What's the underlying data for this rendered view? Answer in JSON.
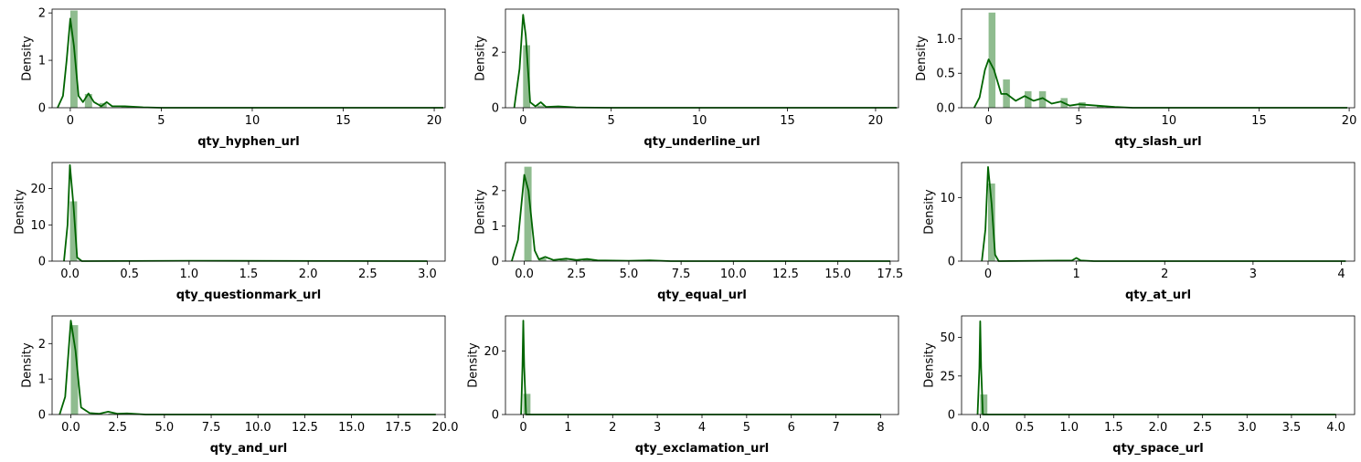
{
  "colors": {
    "bar": "#8fbc8f",
    "kde": "#006400",
    "axis": "#000000"
  },
  "chart_data": [
    {
      "type": "bar",
      "xlabel": "qty_hyphen_url",
      "ylabel": "Density",
      "xlim": [
        -1.0,
        20.6
      ],
      "ylim": [
        0,
        2.08
      ],
      "xticks": [
        0,
        5,
        10,
        15,
        20
      ],
      "xtick_labels": [
        "0",
        "5",
        "10",
        "15",
        "20"
      ],
      "yticks": [
        0,
        1,
        2
      ],
      "ytick_labels": [
        "0",
        "1",
        "2"
      ],
      "bin_width": 0.4,
      "bars": [
        [
          0.0,
          2.05
        ],
        [
          0.8,
          0.29
        ],
        [
          1.6,
          0.1
        ],
        [
          2.8,
          0.02
        ]
      ],
      "kde": [
        [
          -0.7,
          0.0
        ],
        [
          -0.4,
          0.25
        ],
        [
          -0.2,
          1.0
        ],
        [
          0.0,
          1.88
        ],
        [
          0.2,
          1.3
        ],
        [
          0.45,
          0.25
        ],
        [
          0.7,
          0.12
        ],
        [
          1.0,
          0.3
        ],
        [
          1.3,
          0.12
        ],
        [
          1.7,
          0.03
        ],
        [
          2.0,
          0.12
        ],
        [
          2.3,
          0.03
        ],
        [
          3.0,
          0.03
        ],
        [
          4.0,
          0.01
        ],
        [
          5.0,
          0.0
        ],
        [
          20.5,
          0.0
        ]
      ]
    },
    {
      "type": "bar",
      "xlabel": "qty_underline_url",
      "ylabel": "Density",
      "xlim": [
        -1.0,
        21.3
      ],
      "ylim": [
        0,
        3.55
      ],
      "xticks": [
        0,
        5,
        10,
        15,
        20
      ],
      "xtick_labels": [
        "0",
        "5",
        "10",
        "15",
        "20"
      ],
      "yticks": [
        0,
        2
      ],
      "ytick_labels": [
        "0",
        "2"
      ],
      "bin_width": 0.4,
      "bars": [
        [
          0.0,
          2.25
        ],
        [
          0.8,
          0.08
        ]
      ],
      "kde": [
        [
          -0.5,
          0.0
        ],
        [
          -0.2,
          1.4
        ],
        [
          0.0,
          3.35
        ],
        [
          0.15,
          2.6
        ],
        [
          0.4,
          0.2
        ],
        [
          0.7,
          0.05
        ],
        [
          1.0,
          0.2
        ],
        [
          1.3,
          0.03
        ],
        [
          2.0,
          0.05
        ],
        [
          3.0,
          0.01
        ],
        [
          5.0,
          0.0
        ],
        [
          21.2,
          0.0
        ]
      ]
    },
    {
      "type": "bar",
      "xlabel": "qty_slash_url",
      "ylabel": "Density",
      "xlim": [
        -1.5,
        20.3
      ],
      "ylim": [
        0,
        1.43
      ],
      "xticks": [
        0,
        5,
        10,
        15,
        20
      ],
      "xtick_labels": [
        "0",
        "5",
        "10",
        "15",
        "20"
      ],
      "yticks": [
        0,
        0.5,
        1.0
      ],
      "ytick_labels": [
        "0.0",
        "0.5",
        "1.0"
      ],
      "bin_width": 0.38,
      "bars": [
        [
          0.0,
          1.38
        ],
        [
          0.8,
          0.41
        ],
        [
          2.0,
          0.24
        ],
        [
          2.8,
          0.24
        ],
        [
          4.0,
          0.14
        ],
        [
          5.0,
          0.08
        ],
        [
          6.0,
          0.03
        ]
      ],
      "kde": [
        [
          -0.8,
          0.0
        ],
        [
          -0.5,
          0.15
        ],
        [
          -0.2,
          0.55
        ],
        [
          0.0,
          0.7
        ],
        [
          0.3,
          0.55
        ],
        [
          0.7,
          0.2
        ],
        [
          1.0,
          0.2
        ],
        [
          1.5,
          0.1
        ],
        [
          2.0,
          0.17
        ],
        [
          2.5,
          0.1
        ],
        [
          3.0,
          0.14
        ],
        [
          3.5,
          0.06
        ],
        [
          4.0,
          0.09
        ],
        [
          4.5,
          0.03
        ],
        [
          5.0,
          0.05
        ],
        [
          6.0,
          0.03
        ],
        [
          7.0,
          0.01
        ],
        [
          8.0,
          0.0
        ],
        [
          19.9,
          0.0
        ]
      ]
    },
    {
      "type": "bar",
      "xlabel": "qty_questionmark_url",
      "ylabel": "Density",
      "xlim": [
        -0.15,
        3.15
      ],
      "ylim": [
        0,
        27.2
      ],
      "xticks": [
        0,
        0.5,
        1.0,
        1.5,
        2.0,
        2.5,
        3.0
      ],
      "xtick_labels": [
        "0.0",
        "0.5",
        "1.0",
        "1.5",
        "2.0",
        "2.5",
        "3.0"
      ],
      "yticks": [
        0,
        10,
        20
      ],
      "ytick_labels": [
        "0",
        "10",
        "20"
      ],
      "bin_width": 0.06,
      "bars": [
        [
          0.0,
          16.5
        ],
        [
          1.0,
          0.05
        ]
      ],
      "kde": [
        [
          -0.05,
          0.0
        ],
        [
          -0.02,
          10.0
        ],
        [
          0.0,
          26.5
        ],
        [
          0.03,
          15.0
        ],
        [
          0.06,
          1.0
        ],
        [
          0.1,
          0.0
        ],
        [
          1.0,
          0.1
        ],
        [
          3.0,
          0.0
        ]
      ]
    },
    {
      "type": "bar",
      "xlabel": "qty_equal_url",
      "ylabel": "Density",
      "xlim": [
        -0.9,
        17.9
      ],
      "ylim": [
        0,
        2.8
      ],
      "xticks": [
        0,
        2.5,
        5.0,
        7.5,
        10.0,
        12.5,
        15.0,
        17.5
      ],
      "xtick_labels": [
        "0.0",
        "2.5",
        "5.0",
        "7.5",
        "10.0",
        "12.5",
        "15.0",
        "17.5"
      ],
      "yticks": [
        0,
        1,
        2
      ],
      "ytick_labels": [
        "0",
        "1",
        "2"
      ],
      "bin_width": 0.35,
      "bars": [
        [
          0.0,
          2.68
        ],
        [
          0.7,
          0.08
        ],
        [
          1.7,
          0.04
        ],
        [
          2.8,
          0.04
        ]
      ],
      "kde": [
        [
          -0.6,
          0.0
        ],
        [
          -0.3,
          0.6
        ],
        [
          0.0,
          2.45
        ],
        [
          0.2,
          2.0
        ],
        [
          0.5,
          0.3
        ],
        [
          0.7,
          0.05
        ],
        [
          1.0,
          0.12
        ],
        [
          1.4,
          0.03
        ],
        [
          2.0,
          0.07
        ],
        [
          2.5,
          0.03
        ],
        [
          3.0,
          0.06
        ],
        [
          3.5,
          0.02
        ],
        [
          5.0,
          0.01
        ],
        [
          6.0,
          0.02
        ],
        [
          7.0,
          0.0
        ],
        [
          17.5,
          0.0
        ]
      ]
    },
    {
      "type": "bar",
      "xlabel": "qty_at_url",
      "ylabel": "Density",
      "xlim": [
        -0.3,
        4.15
      ],
      "ylim": [
        0,
        15.5
      ],
      "xticks": [
        0,
        1,
        2,
        3,
        4
      ],
      "xtick_labels": [
        "0",
        "1",
        "2",
        "3",
        "4"
      ],
      "yticks": [
        0,
        10
      ],
      "ytick_labels": [
        "0",
        "10"
      ],
      "bin_width": 0.08,
      "bars": [
        [
          0.0,
          12.2
        ],
        [
          1.0,
          0.15
        ]
      ],
      "kde": [
        [
          -0.07,
          0.0
        ],
        [
          -0.03,
          5.0
        ],
        [
          0.0,
          14.8
        ],
        [
          0.04,
          9.0
        ],
        [
          0.08,
          1.0
        ],
        [
          0.12,
          0.0
        ],
        [
          0.95,
          0.1
        ],
        [
          1.0,
          0.5
        ],
        [
          1.05,
          0.1
        ],
        [
          1.2,
          0.0
        ],
        [
          4.05,
          0.0
        ]
      ]
    },
    {
      "type": "bar",
      "xlabel": "qty_and_url",
      "ylabel": "Density",
      "xlim": [
        -1.0,
        20.0
      ],
      "ylim": [
        0,
        2.78
      ],
      "xticks": [
        0,
        2.5,
        5.0,
        7.5,
        10.0,
        12.5,
        15.0,
        17.5,
        20.0
      ],
      "xtick_labels": [
        "0.0",
        "2.5",
        "5.0",
        "7.5",
        "10.0",
        "12.5",
        "15.0",
        "17.5",
        "20.0"
      ],
      "yticks": [
        0,
        1,
        2
      ],
      "ytick_labels": [
        "0",
        "1",
        "2"
      ],
      "bin_width": 0.39,
      "bars": [
        [
          0.0,
          2.52
        ],
        [
          2.0,
          0.03
        ]
      ],
      "kde": [
        [
          -0.6,
          0.0
        ],
        [
          -0.3,
          0.5
        ],
        [
          0.0,
          2.65
        ],
        [
          0.25,
          1.8
        ],
        [
          0.55,
          0.2
        ],
        [
          1.0,
          0.04
        ],
        [
          1.5,
          0.02
        ],
        [
          2.0,
          0.08
        ],
        [
          2.5,
          0.02
        ],
        [
          3.0,
          0.03
        ],
        [
          4.0,
          0.0
        ],
        [
          19.5,
          0.0
        ]
      ]
    },
    {
      "type": "bar",
      "xlabel": "qty_exclamation_url",
      "ylabel": "Density",
      "xlim": [
        -0.4,
        8.4
      ],
      "ylim": [
        0,
        31.0
      ],
      "xticks": [
        0,
        1,
        2,
        3,
        4,
        5,
        6,
        7,
        8
      ],
      "xtick_labels": [
        "0",
        "1",
        "2",
        "3",
        "4",
        "5",
        "6",
        "7",
        "8"
      ],
      "yticks": [
        0,
        20
      ],
      "ytick_labels": [
        "0",
        "20"
      ],
      "bin_width": 0.16,
      "bars": [
        [
          0.0,
          6.5
        ]
      ],
      "kde": [
        [
          -0.05,
          0.0
        ],
        [
          -0.02,
          15.0
        ],
        [
          0.0,
          29.5
        ],
        [
          0.02,
          15.0
        ],
        [
          0.06,
          0.0
        ],
        [
          8.0,
          0.0
        ]
      ]
    },
    {
      "type": "bar",
      "xlabel": "qty_space_url",
      "ylabel": "Density",
      "xlim": [
        -0.21,
        4.21
      ],
      "ylim": [
        0,
        64.0
      ],
      "xticks": [
        0,
        0.5,
        1.0,
        1.5,
        2.0,
        2.5,
        3.0,
        3.5,
        4.0
      ],
      "xtick_labels": [
        "0.0",
        "0.5",
        "1.0",
        "1.5",
        "2.0",
        "2.5",
        "3.0",
        "3.5",
        "4.0"
      ],
      "yticks": [
        0,
        25,
        50
      ],
      "ytick_labels": [
        "0",
        "25",
        "50"
      ],
      "bin_width": 0.08,
      "bars": [
        [
          0.0,
          13.0
        ]
      ],
      "kde": [
        [
          -0.03,
          0.0
        ],
        [
          -0.01,
          30.0
        ],
        [
          0.0,
          60.5
        ],
        [
          0.01,
          30.0
        ],
        [
          0.03,
          0.0
        ],
        [
          4.0,
          0.0
        ]
      ]
    }
  ]
}
